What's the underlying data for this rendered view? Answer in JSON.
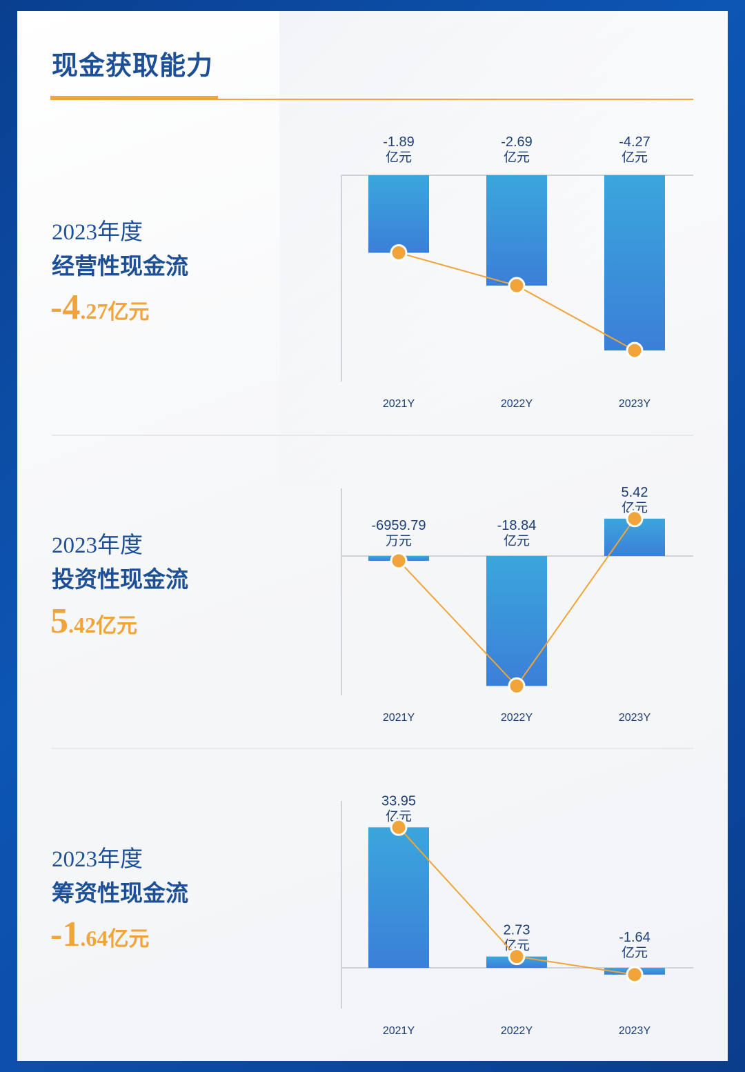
{
  "page_title": "现金获取能力",
  "colors": {
    "title": "#1d4f97",
    "accent": "#f0a43a",
    "bar_top": "#3ba6dc",
    "bar_bottom": "#3b7fd8",
    "axis_label": "#1d3f78"
  },
  "sections": [
    {
      "year_label": "2023年度",
      "name": "经营性现金流",
      "highlight": {
        "int_part": "-4",
        "dec_part": ".27",
        "unit": "亿元"
      }
    },
    {
      "year_label": "2023年度",
      "name": "投资性现金流",
      "highlight": {
        "int_part": "5",
        "dec_part": ".42",
        "unit": "亿元"
      }
    },
    {
      "year_label": "2023年度",
      "name": "筹资性现金流",
      "highlight": {
        "int_part": "-1",
        "dec_part": ".64",
        "unit": "亿元"
      }
    }
  ],
  "chart_data": [
    {
      "type": "bar",
      "title": "经营性现金流",
      "categories": [
        "2021Y",
        "2022Y",
        "2023Y"
      ],
      "values": [
        -1.89,
        -2.69,
        -4.27
      ],
      "unit": "亿元",
      "data_labels": [
        {
          "value": "-1.89",
          "unit": "亿元"
        },
        {
          "value": "-2.69",
          "unit": "亿元"
        },
        {
          "value": "-4.27",
          "unit": "亿元"
        }
      ],
      "overlay_line": true,
      "legend": "none",
      "grid": false
    },
    {
      "type": "bar",
      "title": "投资性现金流",
      "categories": [
        "2021Y",
        "2022Y",
        "2023Y"
      ],
      "values": [
        -0.695979,
        -18.84,
        5.42
      ],
      "unit": "亿元",
      "data_labels": [
        {
          "value": "-6959.79",
          "unit": "万元"
        },
        {
          "value": "-18.84",
          "unit": "亿元"
        },
        {
          "value": "5.42",
          "unit": "亿元"
        }
      ],
      "overlay_line": true,
      "legend": "none",
      "grid": false
    },
    {
      "type": "bar",
      "title": "筹资性现金流",
      "categories": [
        "2021Y",
        "2022Y",
        "2023Y"
      ],
      "values": [
        33.95,
        2.73,
        -1.64
      ],
      "unit": "亿元",
      "data_labels": [
        {
          "value": "33.95",
          "unit": "亿元"
        },
        {
          "value": "2.73",
          "unit": "亿元"
        },
        {
          "value": "-1.64",
          "unit": "亿元"
        }
      ],
      "overlay_line": true,
      "legend": "none",
      "grid": false
    }
  ]
}
